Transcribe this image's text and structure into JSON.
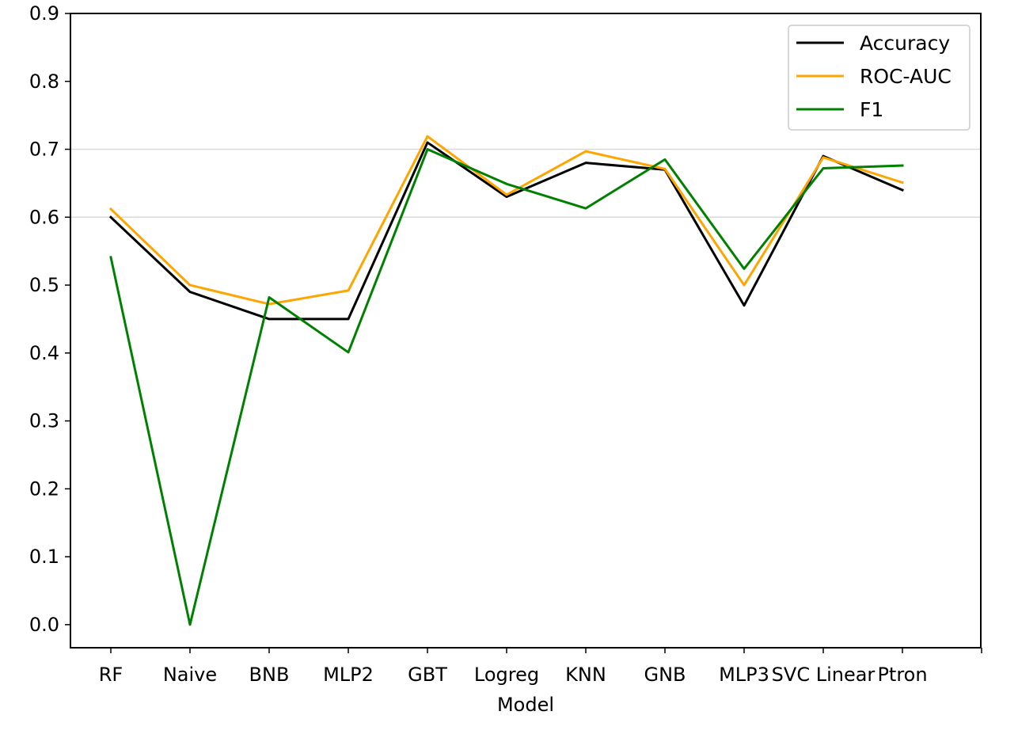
{
  "chart_data": {
    "type": "line",
    "title": "",
    "xlabel": "Model",
    "ylabel": "",
    "categories": [
      "RF",
      "Naive",
      "BNB",
      "MLP2",
      "GBT",
      "Logreg",
      "KNN",
      "GNB",
      "MLP3",
      "SVC Linear",
      "Ptron"
    ],
    "series": [
      {
        "name": "Accuracy",
        "color": "#000000",
        "values": [
          0.6,
          0.49,
          0.45,
          0.45,
          0.71,
          0.63,
          0.68,
          0.67,
          0.47,
          0.69,
          0.64
        ]
      },
      {
        "name": "ROC-AUC",
        "color": "#ffa500",
        "values": [
          0.612,
          0.5,
          0.472,
          0.492,
          0.719,
          0.633,
          0.697,
          0.671,
          0.5,
          0.688,
          0.651
        ]
      },
      {
        "name": "F1",
        "color": "#008000",
        "values": [
          0.541,
          0.0,
          0.482,
          0.401,
          0.7,
          0.649,
          0.613,
          0.685,
          0.524,
          0.672,
          0.676
        ]
      }
    ],
    "y_ticks": [
      "0.0",
      "0.1",
      "0.2",
      "0.3",
      "0.4",
      "0.5",
      "0.6",
      "0.7",
      "0.8",
      "0.9"
    ],
    "ylim": [
      -0.034,
      0.9
    ],
    "y_gridlines": [
      0.6,
      0.7
    ],
    "grid": "horizontal gridlines at 0.6 and 0.7",
    "legend_position": "top-right"
  }
}
